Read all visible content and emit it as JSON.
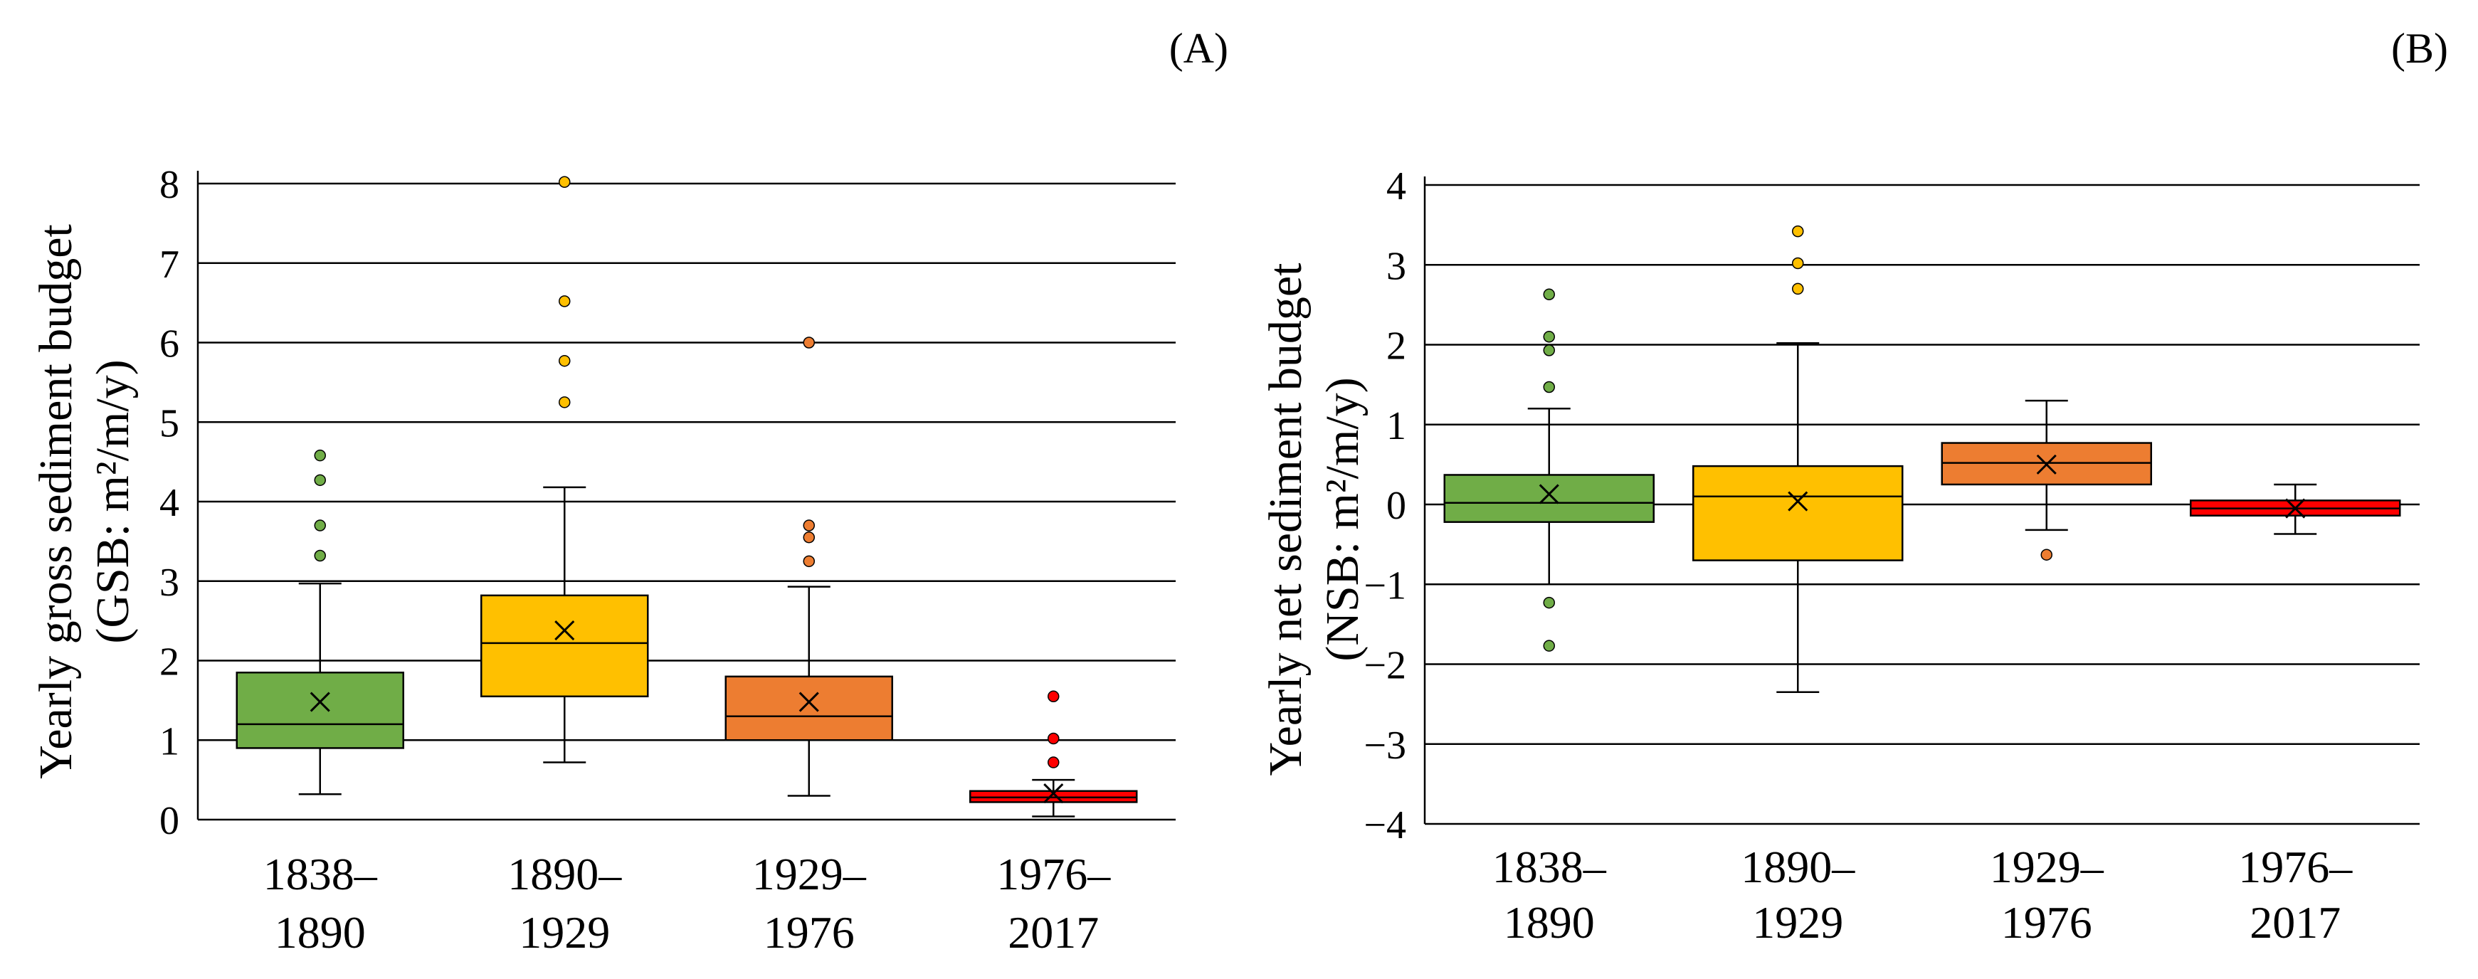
{
  "chart_data": [
    {
      "type": "box",
      "panel_label": "(A)",
      "ylabel_line1": "Yearly gross sediment budget",
      "ylabel_line2": "(GSB: m²/m/y)",
      "ylim": [
        0,
        8
      ],
      "yticks": [
        "0",
        "1",
        "2",
        "3",
        "4",
        "5",
        "6",
        "7",
        "8"
      ],
      "grid": true,
      "categories": [
        {
          "line1": "1838–",
          "line2": "1890"
        },
        {
          "line1": "1890–",
          "line2": "1929"
        },
        {
          "line1": "1929–",
          "line2": "1976"
        },
        {
          "line1": "1976–",
          "line2": "2017"
        }
      ],
      "boxes": [
        {
          "period": "1838–1890",
          "color": "#70ad47",
          "whisker_low": 0.32,
          "q1": 0.9,
          "median": 1.2,
          "q3": 1.85,
          "whisker_high": 2.97,
          "mean": 1.48,
          "outliers": [
            3.32,
            3.7,
            4.27,
            4.58
          ]
        },
        {
          "period": "1890–1929",
          "color": "#ffc000",
          "whisker_low": 0.72,
          "q1": 1.55,
          "median": 2.22,
          "q3": 2.82,
          "whisker_high": 4.18,
          "mean": 2.38,
          "outliers": [
            5.25,
            5.77,
            6.52,
            8.02
          ]
        },
        {
          "period": "1929–1976",
          "color": "#ed7d31",
          "whisker_low": 0.3,
          "q1": 1.0,
          "median": 1.3,
          "q3": 1.8,
          "whisker_high": 2.93,
          "mean": 1.48,
          "outliers": [
            3.25,
            3.55,
            3.7,
            6.0
          ]
        },
        {
          "period": "1976–2017",
          "color": "#ff0000",
          "whisker_low": 0.04,
          "q1": 0.22,
          "median": 0.28,
          "q3": 0.36,
          "whisker_high": 0.5,
          "mean": 0.33,
          "outliers": [
            0.72,
            1.02,
            1.55
          ]
        }
      ]
    },
    {
      "type": "box",
      "panel_label": "(B)",
      "ylabel_line1": "Yearly net sediment budget",
      "ylabel_line2": "(NSB: m²/m/y)",
      "ylim": [
        -4,
        4
      ],
      "yticks": [
        "−4",
        "−3",
        "−2",
        "−1",
        "0",
        "1",
        "2",
        "3",
        "4"
      ],
      "grid": true,
      "categories": [
        {
          "line1": "1838–",
          "line2": "1890"
        },
        {
          "line1": "1890–",
          "line2": "1929"
        },
        {
          "line1": "1929–",
          "line2": "1976"
        },
        {
          "line1": "1976–",
          "line2": "2017"
        }
      ],
      "boxes": [
        {
          "period": "1838–1890",
          "color": "#70ad47",
          "whisker_low": -1.0,
          "q1": -0.22,
          "median": 0.02,
          "q3": 0.37,
          "whisker_high": 1.2,
          "mean": 0.13,
          "outliers": [
            -1.77,
            -1.23,
            1.47,
            1.93,
            2.1,
            2.63
          ]
        },
        {
          "period": "1890–1929",
          "color": "#ffc000",
          "whisker_low": -2.35,
          "q1": -0.7,
          "median": 0.1,
          "q3": 0.48,
          "whisker_high": 2.02,
          "mean": 0.04,
          "outliers": [
            2.7,
            3.02,
            3.42
          ]
        },
        {
          "period": "1929–1976",
          "color": "#ed7d31",
          "whisker_low": -0.32,
          "q1": 0.25,
          "median": 0.52,
          "q3": 0.77,
          "whisker_high": 1.3,
          "mean": 0.5,
          "outliers": [
            -0.63
          ]
        },
        {
          "period": "1976–2017",
          "color": "#ff0000",
          "whisker_low": -0.37,
          "q1": -0.14,
          "median": -0.05,
          "q3": 0.05,
          "whisker_high": 0.25,
          "mean": -0.05,
          "outliers": []
        }
      ]
    }
  ]
}
